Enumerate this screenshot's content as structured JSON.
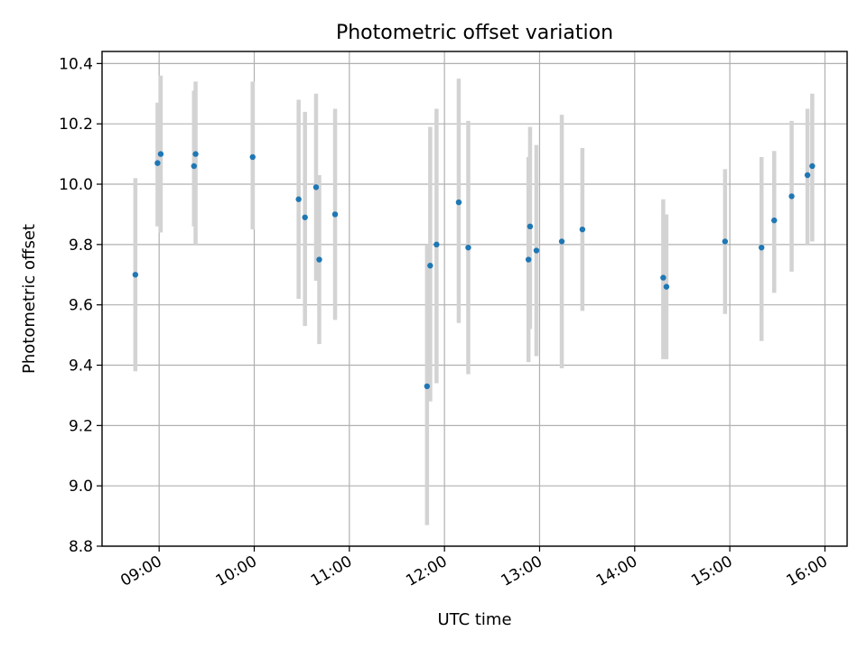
{
  "chart_data": {
    "type": "scatter",
    "title": "Photometric offset variation",
    "xlabel": "UTC time",
    "ylabel": "Photometric offset",
    "x_axis": {
      "type": "time",
      "range": [
        "08:24",
        "16:14"
      ],
      "ticks": [
        "09:00",
        "10:00",
        "11:00",
        "12:00",
        "13:00",
        "14:00",
        "15:00",
        "16:00"
      ]
    },
    "y_axis": {
      "range": [
        8.8,
        10.44
      ],
      "ticks": [
        "8.8",
        "9.0",
        "9.2",
        "9.4",
        "9.6",
        "9.8",
        "10.0",
        "10.2",
        "10.4"
      ]
    },
    "grid": true,
    "colors": {
      "point": "#1f77b4",
      "errorbar": "#d3d3d3",
      "grid": "#b0b0b0"
    },
    "series": [
      {
        "points": [
          {
            "time": "08:45",
            "y": 9.7,
            "err_low": 9.38,
            "err_high": 10.02
          },
          {
            "time": "08:59",
            "y": 10.07,
            "err_low": 9.86,
            "err_high": 10.27
          },
          {
            "time": "09:01",
            "y": 10.1,
            "err_low": 9.84,
            "err_high": 10.36
          },
          {
            "time": "09:22",
            "y": 10.06,
            "err_low": 9.86,
            "err_high": 10.31
          },
          {
            "time": "09:23",
            "y": 10.1,
            "err_low": 9.8,
            "err_high": 10.34
          },
          {
            "time": "09:59",
            "y": 10.09,
            "err_low": 9.85,
            "err_high": 10.34
          },
          {
            "time": "10:28",
            "y": 9.95,
            "err_low": 9.62,
            "err_high": 10.28
          },
          {
            "time": "10:32",
            "y": 9.89,
            "err_low": 9.53,
            "err_high": 10.24
          },
          {
            "time": "10:39",
            "y": 9.99,
            "err_low": 9.68,
            "err_high": 10.3
          },
          {
            "time": "10:41",
            "y": 9.75,
            "err_low": 9.47,
            "err_high": 10.03
          },
          {
            "time": "10:51",
            "y": 9.9,
            "err_low": 9.55,
            "err_high": 10.25
          },
          {
            "time": "11:49",
            "y": 9.33,
            "err_low": 8.87,
            "err_high": 9.8
          },
          {
            "time": "11:51",
            "y": 9.73,
            "err_low": 9.28,
            "err_high": 10.19
          },
          {
            "time": "11:55",
            "y": 9.8,
            "err_low": 9.34,
            "err_high": 10.25
          },
          {
            "time": "12:09",
            "y": 9.94,
            "err_low": 9.54,
            "err_high": 10.35
          },
          {
            "time": "12:15",
            "y": 9.79,
            "err_low": 9.37,
            "err_high": 10.21
          },
          {
            "time": "12:53",
            "y": 9.75,
            "err_low": 9.41,
            "err_high": 10.09
          },
          {
            "time": "12:54",
            "y": 9.86,
            "err_low": 9.52,
            "err_high": 10.19
          },
          {
            "time": "12:58",
            "y": 9.78,
            "err_low": 9.43,
            "err_high": 10.13
          },
          {
            "time": "13:14",
            "y": 9.81,
            "err_low": 9.39,
            "err_high": 10.23
          },
          {
            "time": "13:27",
            "y": 9.85,
            "err_low": 9.58,
            "err_high": 10.12
          },
          {
            "time": "14:18",
            "y": 9.69,
            "err_low": 9.42,
            "err_high": 9.95
          },
          {
            "time": "14:20",
            "y": 9.66,
            "err_low": 9.42,
            "err_high": 9.9
          },
          {
            "time": "14:57",
            "y": 9.81,
            "err_low": 9.57,
            "err_high": 10.05
          },
          {
            "time": "15:20",
            "y": 9.79,
            "err_low": 9.48,
            "err_high": 10.09
          },
          {
            "time": "15:28",
            "y": 9.88,
            "err_low": 9.64,
            "err_high": 10.11
          },
          {
            "time": "15:39",
            "y": 9.96,
            "err_low": 9.71,
            "err_high": 10.21
          },
          {
            "time": "15:49",
            "y": 10.03,
            "err_low": 9.8,
            "err_high": 10.25
          },
          {
            "time": "15:52",
            "y": 10.06,
            "err_low": 9.81,
            "err_high": 10.3
          }
        ]
      }
    ]
  }
}
